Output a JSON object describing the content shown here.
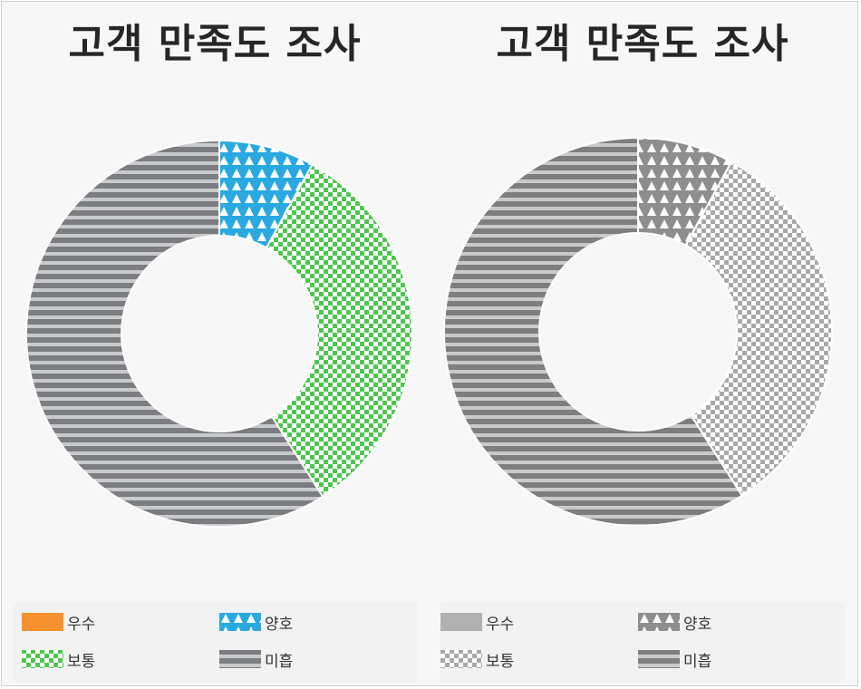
{
  "chart_data": [
    {
      "type": "pie",
      "variant": "donut",
      "title": "고객 만족도 조사",
      "categories": [
        "우수",
        "양호",
        "보통",
        "미흡"
      ],
      "values": [
        0,
        8,
        33,
        59
      ],
      "colors": [
        "#f5922f",
        "#29a9e0",
        "#4ec64e",
        "#7b7d80"
      ],
      "patterns": [
        "solid",
        "triangles",
        "checker",
        "stripes"
      ],
      "legend": "bottom"
    },
    {
      "type": "pie",
      "variant": "donut",
      "title": "고객 만족도 조사",
      "categories": [
        "우수",
        "양호",
        "보통",
        "미흡"
      ],
      "values": [
        0,
        8,
        33,
        59
      ],
      "colors": [
        "#b0b0b0",
        "#8e8e8e",
        "#a8a8a8",
        "#7e7e7e"
      ],
      "patterns": [
        "solid",
        "triangles",
        "checker",
        "stripes"
      ],
      "legend": "bottom"
    }
  ]
}
